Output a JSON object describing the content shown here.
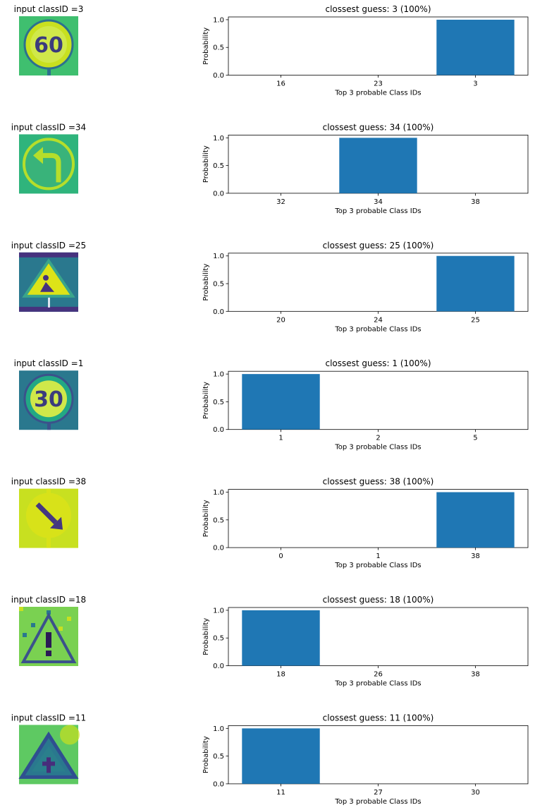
{
  "panels": [
    {
      "input_title": "input classID =3",
      "sign": "sign-60",
      "palette": [
        "#3fbf6f",
        "#c8e020",
        "#2d708e"
      ],
      "chart_data": {
        "type": "bar",
        "title": "clossest guess: 3 (100%)",
        "categories": [
          "16",
          "23",
          "3"
        ],
        "values": [
          0,
          0,
          1.0
        ],
        "xlabel": "Top 3 probable Class IDs",
        "ylabel": "Probability",
        "ylim": [
          0,
          1.05
        ],
        "yticks": [
          "0.0",
          "0.5",
          "1.0"
        ],
        "bar_color": "#1f77b4"
      }
    },
    {
      "input_title": "input classID =34",
      "sign": "sign-turn-left",
      "palette": [
        "#2fb47c",
        "#b5de2b",
        "#31688e"
      ],
      "chart_data": {
        "type": "bar",
        "title": "clossest guess: 34 (100%)",
        "categories": [
          "32",
          "34",
          "38"
        ],
        "values": [
          0,
          1.0,
          0
        ],
        "xlabel": "Top 3 probable Class IDs",
        "ylabel": "Probability",
        "ylim": [
          0,
          1.05
        ],
        "yticks": [
          "0.0",
          "0.5",
          "1.0"
        ],
        "bar_color": "#1f77b4"
      }
    },
    {
      "input_title": "input classID =25",
      "sign": "sign-roadwork",
      "palette": [
        "#2a788e",
        "#dde318",
        "#46327e"
      ],
      "chart_data": {
        "type": "bar",
        "title": "clossest guess: 25 (100%)",
        "categories": [
          "20",
          "24",
          "25"
        ],
        "values": [
          0,
          0,
          1.0
        ],
        "xlabel": "Top 3 probable Class IDs",
        "ylabel": "Probability",
        "ylim": [
          0,
          1.05
        ],
        "yticks": [
          "0.0",
          "0.5",
          "1.0"
        ],
        "bar_color": "#1f77b4"
      }
    },
    {
      "input_title": "input classID =1",
      "sign": "sign-30",
      "palette": [
        "#2a788e",
        "#22a884",
        "#3b528b"
      ],
      "chart_data": {
        "type": "bar",
        "title": "clossest guess: 1 (100%)",
        "categories": [
          "1",
          "2",
          "5"
        ],
        "values": [
          1.0,
          0,
          0
        ],
        "xlabel": "Top 3 probable Class IDs",
        "ylabel": "Probability",
        "ylim": [
          0,
          1.05
        ],
        "yticks": [
          "0.0",
          "0.5",
          "1.0"
        ],
        "bar_color": "#1f77b4"
      }
    },
    {
      "input_title": "input classID =38",
      "sign": "sign-keep-right",
      "palette": [
        "#c8e020",
        "#453781",
        "#d8e219"
      ],
      "chart_data": {
        "type": "bar",
        "title": "clossest guess: 38 (100%)",
        "categories": [
          "0",
          "1",
          "38"
        ],
        "values": [
          0,
          0,
          1.0
        ],
        "xlabel": "Top 3 probable Class IDs",
        "ylabel": "Probability",
        "ylim": [
          0,
          1.05
        ],
        "yticks": [
          "0.0",
          "0.5",
          "1.0"
        ],
        "bar_color": "#1f77b4"
      }
    },
    {
      "input_title": "input classID =18",
      "sign": "sign-caution",
      "palette": [
        "#7ad151",
        "#2a788e",
        "#3b528b"
      ],
      "chart_data": {
        "type": "bar",
        "title": "clossest guess: 18 (100%)",
        "categories": [
          "18",
          "26",
          "38"
        ],
        "values": [
          1.0,
          0,
          0
        ],
        "xlabel": "Top 3 probable Class IDs",
        "ylabel": "Probability",
        "ylim": [
          0,
          1.05
        ],
        "yticks": [
          "0.0",
          "0.5",
          "1.0"
        ],
        "bar_color": "#1f77b4"
      }
    },
    {
      "input_title": "input classID =11",
      "sign": "sign-right-of-way",
      "palette": [
        "#5ec962",
        "#2a788e",
        "#472d7b"
      ],
      "chart_data": {
        "type": "bar",
        "title": "clossest guess: 11 (100%)",
        "categories": [
          "11",
          "27",
          "30"
        ],
        "values": [
          1.0,
          0,
          0
        ],
        "xlabel": "Top 3 probable Class IDs",
        "ylabel": "Probability",
        "ylim": [
          0,
          1.05
        ],
        "yticks": [
          "0.0",
          "0.5",
          "1.0"
        ],
        "bar_color": "#1f77b4"
      }
    }
  ]
}
